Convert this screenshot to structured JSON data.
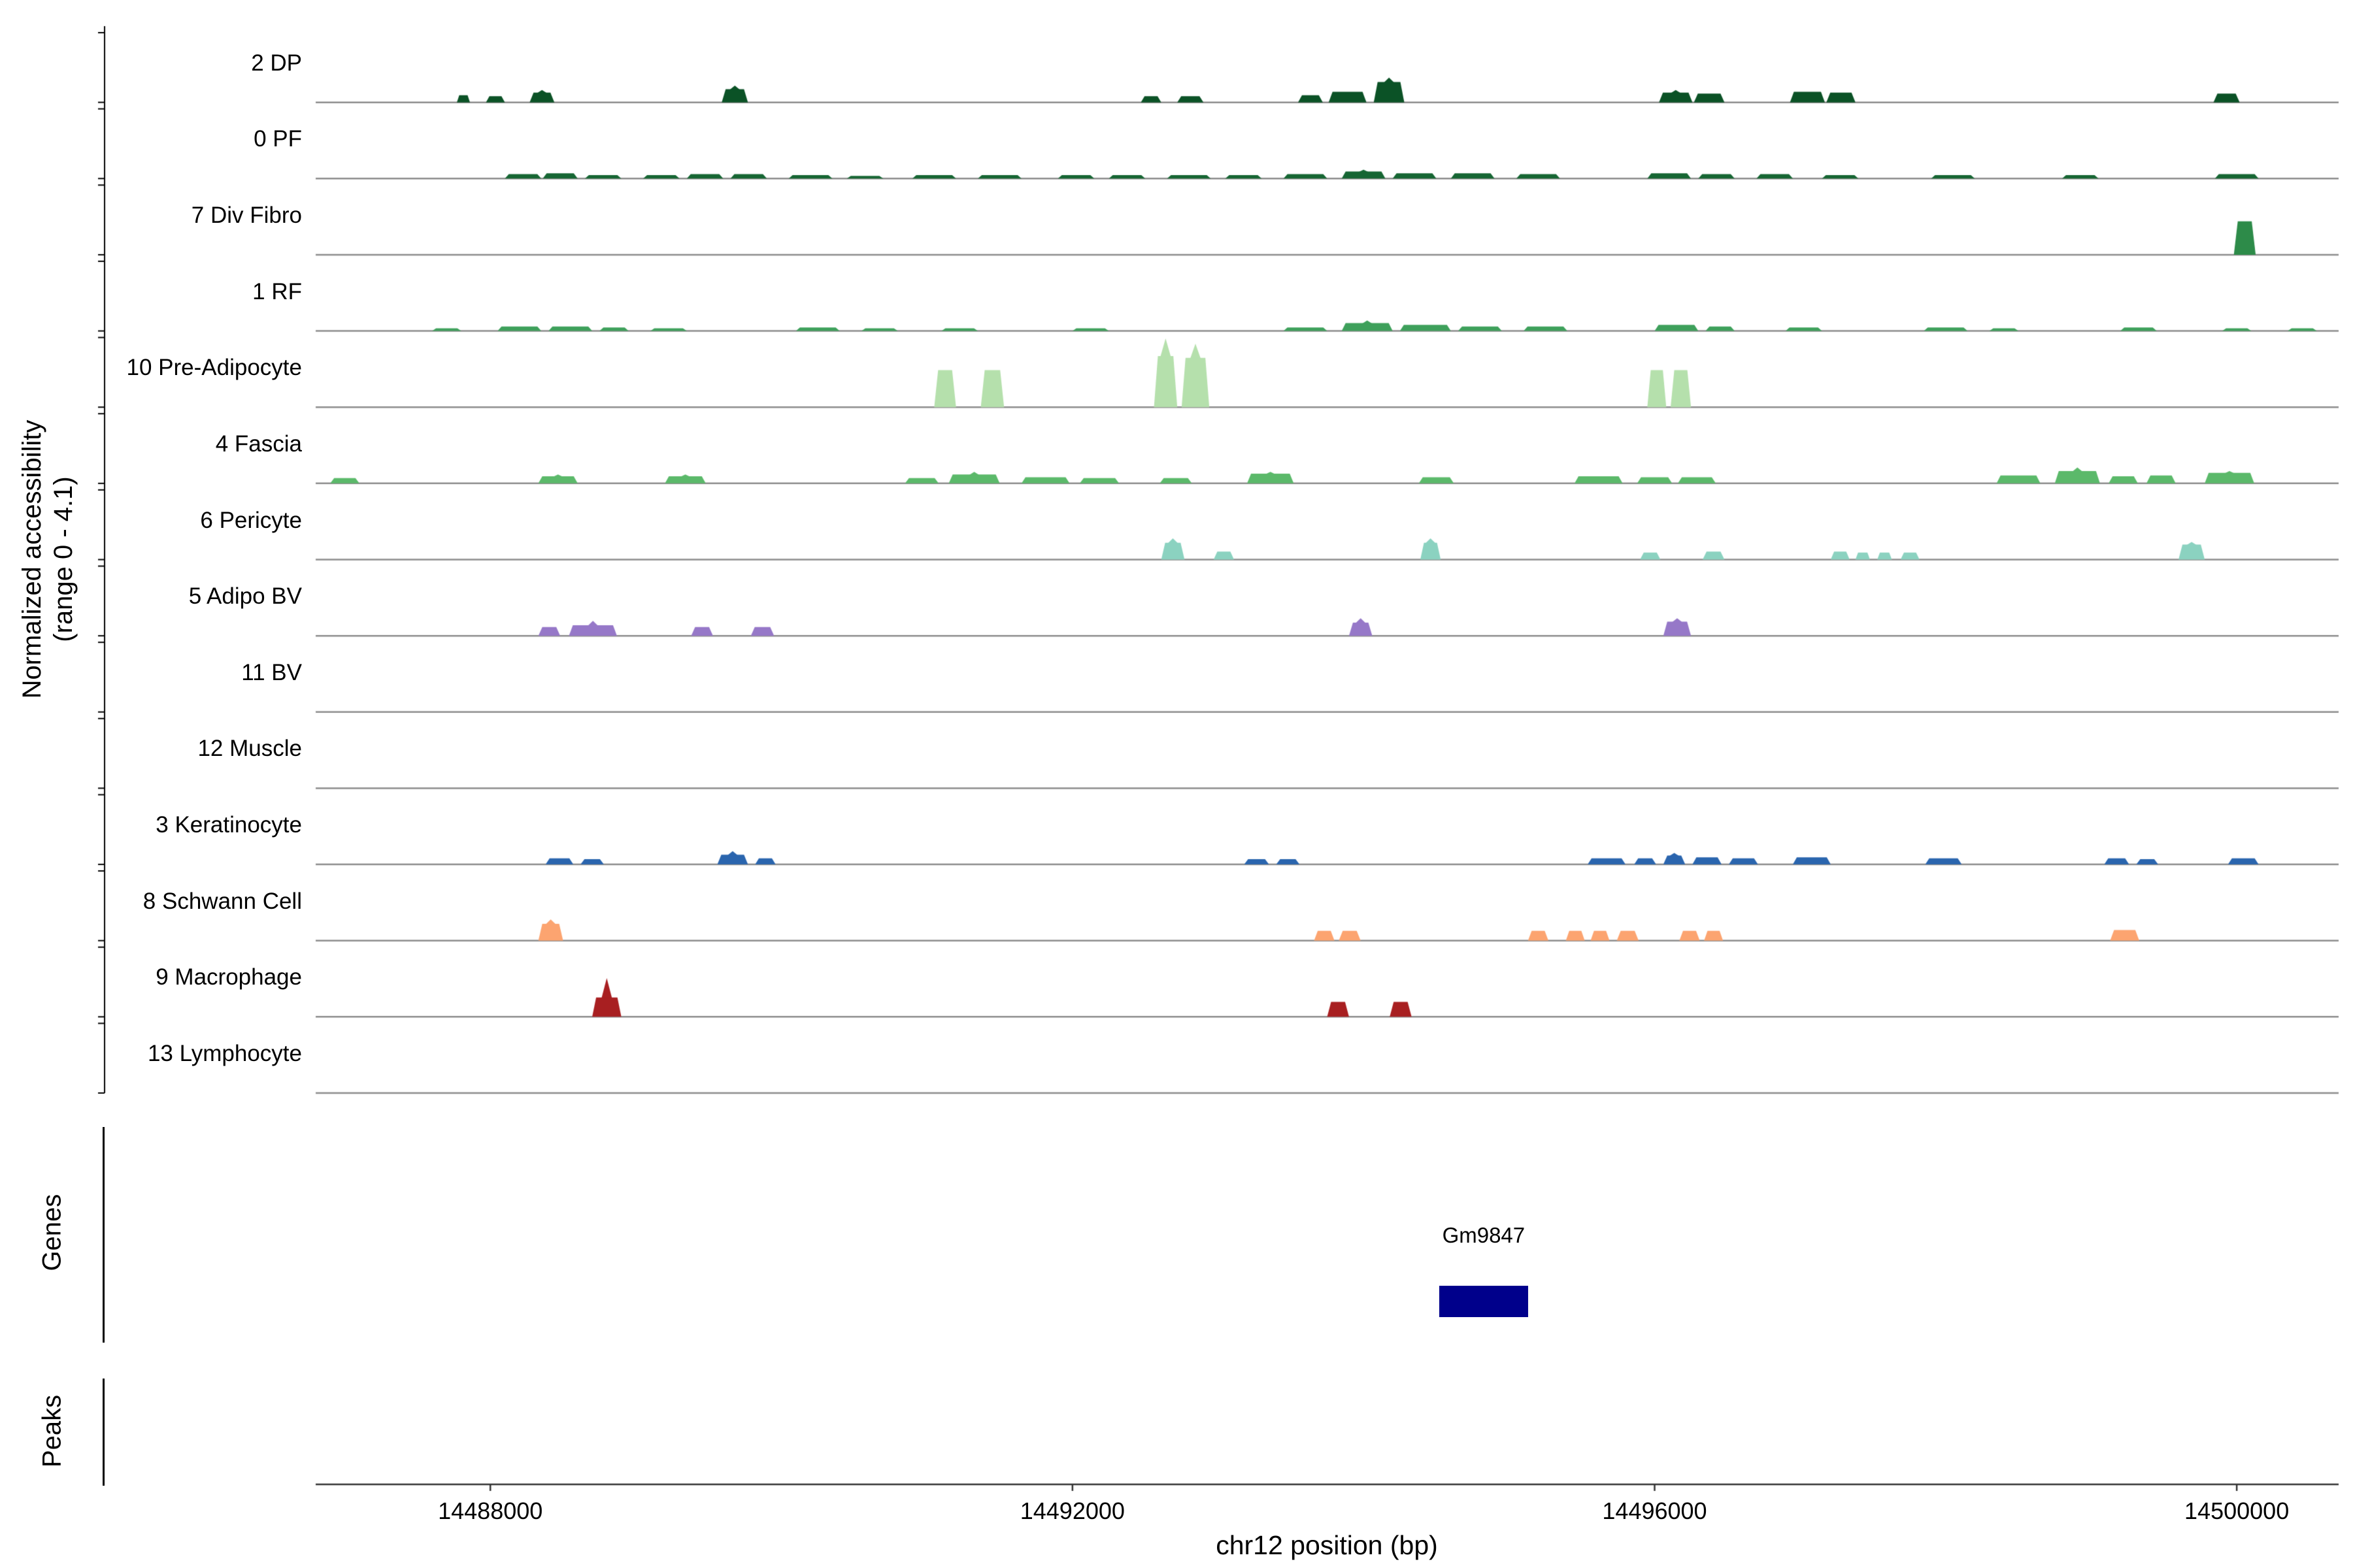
{
  "figure": {
    "y_axis_label_line1": "Normalized accessibility",
    "y_axis_label_line2": "(range 0 - 4.1)",
    "x_axis_label": "chr12 position (bp)",
    "genes_section_label": "Genes",
    "peaks_section_label": "Peaks"
  },
  "chart_data": {
    "type": "area",
    "subtype": "genome-browser-accessibility-tracks",
    "chrom": "chr12",
    "xlim": [
      14486800,
      14500700
    ],
    "track_ylim": [
      0,
      4.1
    ],
    "x_ticks": [
      14488000,
      14492000,
      14496000,
      14500000
    ],
    "x_tick_labels": [
      "14488000",
      "14492000",
      "14496000",
      "14500000"
    ],
    "baseline_color": "#8c8c8c",
    "axis_color": "#333333",
    "tracks": [
      {
        "label": "2 DP",
        "color": "#0B5226",
        "peaks": [
          [
            14487770,
            14487860,
            0.4
          ],
          [
            14487970,
            14488100,
            0.35
          ],
          [
            14488270,
            14488440,
            0.55,
            0.7
          ],
          [
            14489590,
            14489770,
            0.75,
            0.95
          ],
          [
            14492470,
            14492610,
            0.35
          ],
          [
            14492720,
            14492900,
            0.35
          ],
          [
            14493550,
            14493720,
            0.4
          ],
          [
            14493760,
            14494020,
            0.6
          ],
          [
            14494070,
            14494280,
            1.15,
            1.4
          ],
          [
            14496030,
            14496260,
            0.55,
            0.7
          ],
          [
            14496270,
            14496480,
            0.5
          ],
          [
            14496930,
            14497170,
            0.6
          ],
          [
            14497180,
            14497380,
            0.55
          ],
          [
            14499840,
            14500020,
            0.5
          ]
        ]
      },
      {
        "label": "0 PF",
        "color": "#166633",
        "peaks": [
          [
            14488100,
            14488350,
            0.25
          ],
          [
            14488360,
            14488600,
            0.3
          ],
          [
            14488650,
            14488900,
            0.2
          ],
          [
            14489050,
            14489300,
            0.2
          ],
          [
            14489350,
            14489600,
            0.25
          ],
          [
            14489650,
            14489900,
            0.25
          ],
          [
            14490050,
            14490350,
            0.2
          ],
          [
            14490450,
            14490700,
            0.15
          ],
          [
            14490900,
            14491200,
            0.2
          ],
          [
            14491350,
            14491650,
            0.2
          ],
          [
            14491900,
            14492150,
            0.2
          ],
          [
            14492250,
            14492500,
            0.2
          ],
          [
            14492650,
            14492950,
            0.2
          ],
          [
            14493050,
            14493300,
            0.2
          ],
          [
            14493450,
            14493750,
            0.25
          ],
          [
            14493850,
            14494150,
            0.4,
            0.5
          ],
          [
            14494200,
            14494500,
            0.3
          ],
          [
            14494600,
            14494900,
            0.3
          ],
          [
            14495050,
            14495350,
            0.25
          ],
          [
            14495950,
            14496250,
            0.3
          ],
          [
            14496300,
            14496550,
            0.25
          ],
          [
            14496700,
            14496950,
            0.25
          ],
          [
            14497150,
            14497400,
            0.2
          ],
          [
            14497900,
            14498200,
            0.2
          ],
          [
            14498800,
            14499050,
            0.2
          ],
          [
            14499850,
            14500150,
            0.25
          ]
        ]
      },
      {
        "label": "7 Div Fibro",
        "color": "#2D8B49",
        "peaks": [
          [
            14499980,
            14500130,
            1.9
          ]
        ]
      },
      {
        "label": "1 RF",
        "color": "#3EA05B",
        "peaks": [
          [
            14487600,
            14487800,
            0.15
          ],
          [
            14488050,
            14488350,
            0.25
          ],
          [
            14488400,
            14488700,
            0.25
          ],
          [
            14488750,
            14488950,
            0.2
          ],
          [
            14489100,
            14489350,
            0.15
          ],
          [
            14490100,
            14490400,
            0.2
          ],
          [
            14490550,
            14490800,
            0.15
          ],
          [
            14491100,
            14491350,
            0.15
          ],
          [
            14492000,
            14492250,
            0.15
          ],
          [
            14493450,
            14493750,
            0.2
          ],
          [
            14493850,
            14494200,
            0.45,
            0.6
          ],
          [
            14494250,
            14494600,
            0.35
          ],
          [
            14494650,
            14494950,
            0.25
          ],
          [
            14495100,
            14495400,
            0.25
          ],
          [
            14496000,
            14496300,
            0.35
          ],
          [
            14496350,
            14496550,
            0.25
          ],
          [
            14496900,
            14497150,
            0.2
          ],
          [
            14497850,
            14498150,
            0.2
          ],
          [
            14498300,
            14498500,
            0.15
          ],
          [
            14499200,
            14499450,
            0.2
          ],
          [
            14499900,
            14500100,
            0.15
          ],
          [
            14500350,
            14500550,
            0.15
          ]
        ]
      },
      {
        "label": "10 Pre-Adipocyte",
        "color": "#B5E0AC",
        "peaks": [
          [
            14491050,
            14491200,
            2.1
          ],
          [
            14491370,
            14491530,
            2.1
          ],
          [
            14492560,
            14492720,
            2.9,
            3.9
          ],
          [
            14492750,
            14492940,
            2.8,
            3.6
          ],
          [
            14495950,
            14496080,
            2.1
          ],
          [
            14496110,
            14496250,
            2.1
          ]
        ]
      },
      {
        "label": "4 Fascia",
        "color": "#5BB96A",
        "peaks": [
          [
            14486900,
            14487100,
            0.3
          ],
          [
            14488330,
            14488600,
            0.4,
            0.5
          ],
          [
            14489200,
            14489480,
            0.4,
            0.5
          ],
          [
            14490850,
            14491080,
            0.3
          ],
          [
            14491150,
            14491500,
            0.5,
            0.65
          ],
          [
            14491650,
            14491980,
            0.35
          ],
          [
            14492050,
            14492320,
            0.3
          ],
          [
            14492600,
            14492820,
            0.3
          ],
          [
            14493200,
            14493520,
            0.55,
            0.65
          ],
          [
            14494380,
            14494620,
            0.35
          ],
          [
            14495450,
            14495780,
            0.4
          ],
          [
            14495880,
            14496120,
            0.35
          ],
          [
            14496160,
            14496420,
            0.35
          ],
          [
            14498350,
            14498650,
            0.45
          ],
          [
            14498750,
            14499060,
            0.7,
            0.9
          ],
          [
            14499120,
            14499320,
            0.4
          ],
          [
            14499380,
            14499580,
            0.45
          ],
          [
            14499780,
            14500120,
            0.6,
            0.7
          ]
        ]
      },
      {
        "label": "6 Pericyte",
        "color": "#8BD2C0",
        "peaks": [
          [
            14492610,
            14492770,
            0.95,
            1.2
          ],
          [
            14492970,
            14493110,
            0.45
          ],
          [
            14494390,
            14494530,
            0.95,
            1.2
          ],
          [
            14495900,
            14496040,
            0.4
          ],
          [
            14496330,
            14496480,
            0.45
          ],
          [
            14497210,
            14497340,
            0.45
          ],
          [
            14497380,
            14497480,
            0.4
          ],
          [
            14497530,
            14497630,
            0.4
          ],
          [
            14497690,
            14497820,
            0.4
          ],
          [
            14499600,
            14499780,
            0.85,
            1.0
          ]
        ]
      },
      {
        "label": "5 Adipo BV",
        "color": "#9678C8",
        "peaks": [
          [
            14488330,
            14488480,
            0.5
          ],
          [
            14488540,
            14488870,
            0.6,
            0.85
          ],
          [
            14489380,
            14489530,
            0.5
          ],
          [
            14489790,
            14489950,
            0.5
          ],
          [
            14493900,
            14494060,
            0.75,
            1.0
          ],
          [
            14496060,
            14496250,
            0.8,
            1.0
          ]
        ]
      },
      {
        "label": "11 BV",
        "color": null,
        "peaks": []
      },
      {
        "label": "12 Muscle",
        "color": null,
        "peaks": []
      },
      {
        "label": "3 Keratinocyte",
        "color": "#2A65AE",
        "peaks": [
          [
            14488380,
            14488570,
            0.35
          ],
          [
            14488620,
            14488780,
            0.3
          ],
          [
            14489560,
            14489770,
            0.55,
            0.75
          ],
          [
            14489820,
            14489960,
            0.35
          ],
          [
            14493180,
            14493350,
            0.3
          ],
          [
            14493400,
            14493560,
            0.3
          ],
          [
            14495540,
            14495800,
            0.35
          ],
          [
            14495860,
            14496010,
            0.35
          ],
          [
            14496060,
            14496210,
            0.5,
            0.65
          ],
          [
            14496260,
            14496460,
            0.4
          ],
          [
            14496510,
            14496710,
            0.35
          ],
          [
            14496950,
            14497210,
            0.4
          ],
          [
            14497860,
            14498110,
            0.35
          ],
          [
            14499090,
            14499260,
            0.35
          ],
          [
            14499310,
            14499460,
            0.3
          ],
          [
            14499940,
            14500150,
            0.35
          ]
        ]
      },
      {
        "label": "8 Schwann Cell",
        "color": "#FCA470",
        "peaks": [
          [
            14488330,
            14488500,
            0.95,
            1.2
          ],
          [
            14493660,
            14493800,
            0.55
          ],
          [
            14493830,
            14493980,
            0.55
          ],
          [
            14495130,
            14495270,
            0.55
          ],
          [
            14495390,
            14495520,
            0.55
          ],
          [
            14495560,
            14495690,
            0.55
          ],
          [
            14495740,
            14495890,
            0.55
          ],
          [
            14496170,
            14496310,
            0.55
          ],
          [
            14496340,
            14496470,
            0.55
          ],
          [
            14499130,
            14499330,
            0.6
          ]
        ]
      },
      {
        "label": "9 Macrophage",
        "color": "#A81F21",
        "peaks": [
          [
            14488700,
            14488900,
            1.1,
            2.2
          ],
          [
            14493750,
            14493900,
            0.85
          ],
          [
            14494180,
            14494330,
            0.85
          ]
        ]
      },
      {
        "label": "13 Lymphocyte",
        "color": null,
        "peaks": []
      }
    ],
    "genes": [
      {
        "name": "Gm9847",
        "start": 14494520,
        "end": 14495130,
        "color": "#00008B"
      }
    ],
    "peak_intervals": []
  }
}
